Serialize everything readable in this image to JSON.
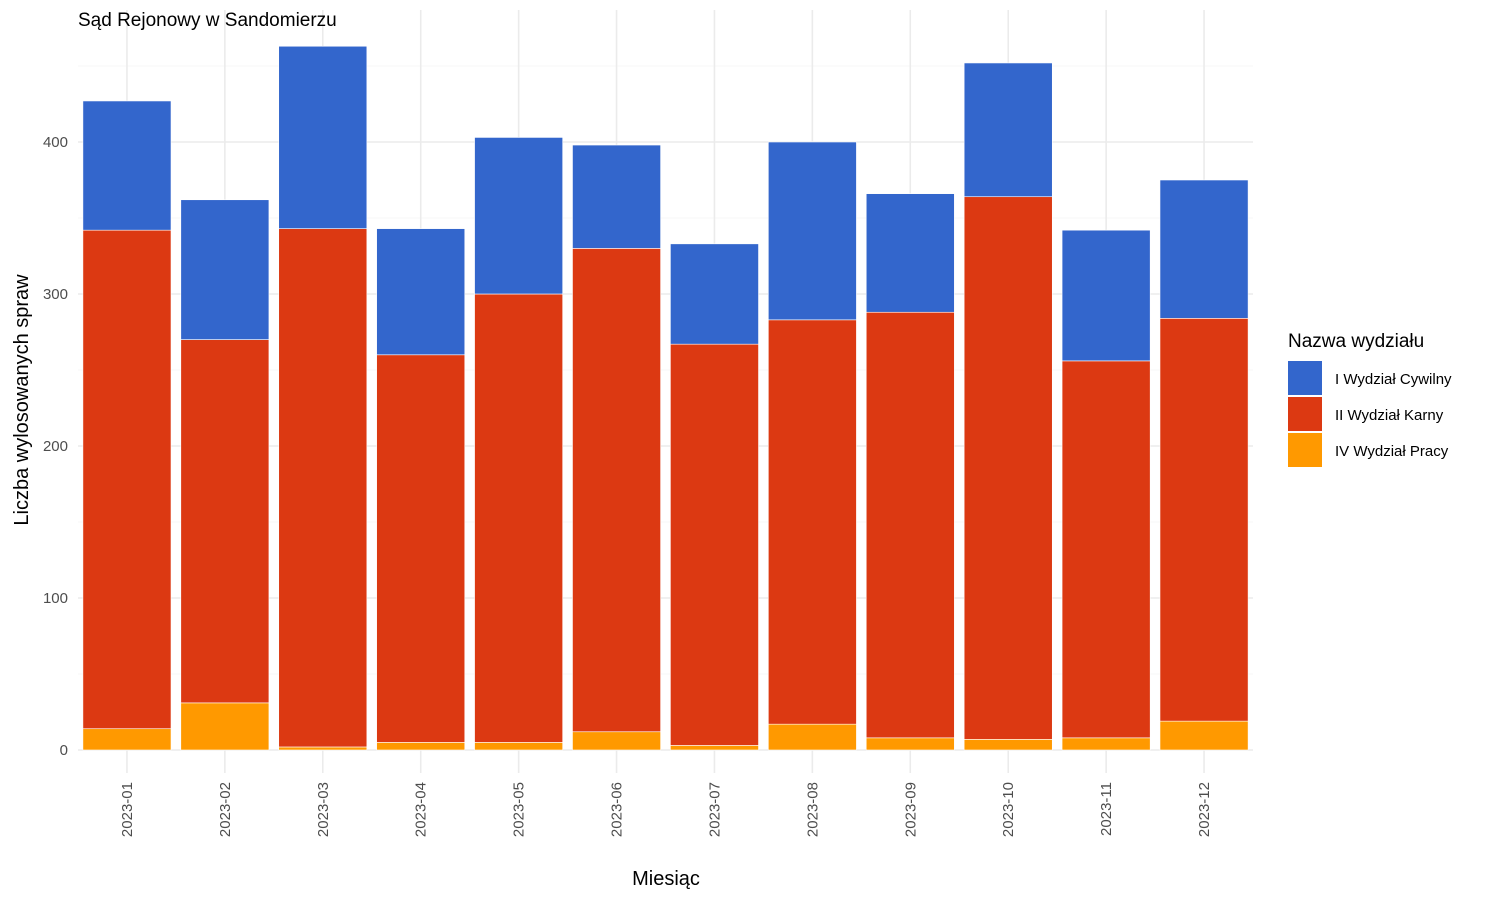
{
  "chart_data": {
    "type": "bar",
    "stacked": true,
    "title": "Sąd Rejonowy w Sandomierzu",
    "xlabel": "Miesiąc",
    "ylabel": "Liczba wylosowanych spraw",
    "ylim": [
      0,
      480
    ],
    "y_ticks": [
      0,
      100,
      200,
      300,
      400
    ],
    "grid": true,
    "legend_position": "right",
    "legend_title": "Nazwa wydziału",
    "categories": [
      "2023-01",
      "2023-02",
      "2023-03",
      "2023-04",
      "2023-05",
      "2023-06",
      "2023-07",
      "2023-08",
      "2023-09",
      "2023-10",
      "2023-11",
      "2023-12"
    ],
    "series": [
      {
        "name": "IV Wydział Pracy",
        "color": "#ff9900",
        "values": [
          14,
          31,
          2,
          5,
          5,
          12,
          3,
          17,
          8,
          7,
          8,
          19
        ]
      },
      {
        "name": "II Wydział Karny",
        "color": "#dc3912",
        "values": [
          328,
          239,
          341,
          255,
          295,
          318,
          264,
          266,
          280,
          357,
          248,
          265
        ]
      },
      {
        "name": "I Wydział Cywilny",
        "color": "#3366cc",
        "values": [
          85,
          92,
          120,
          83,
          103,
          68,
          66,
          117,
          78,
          88,
          86,
          91
        ]
      }
    ],
    "legend_order": [
      "I Wydział Cywilny",
      "II Wydział Karny",
      "IV Wydział Pracy"
    ]
  }
}
